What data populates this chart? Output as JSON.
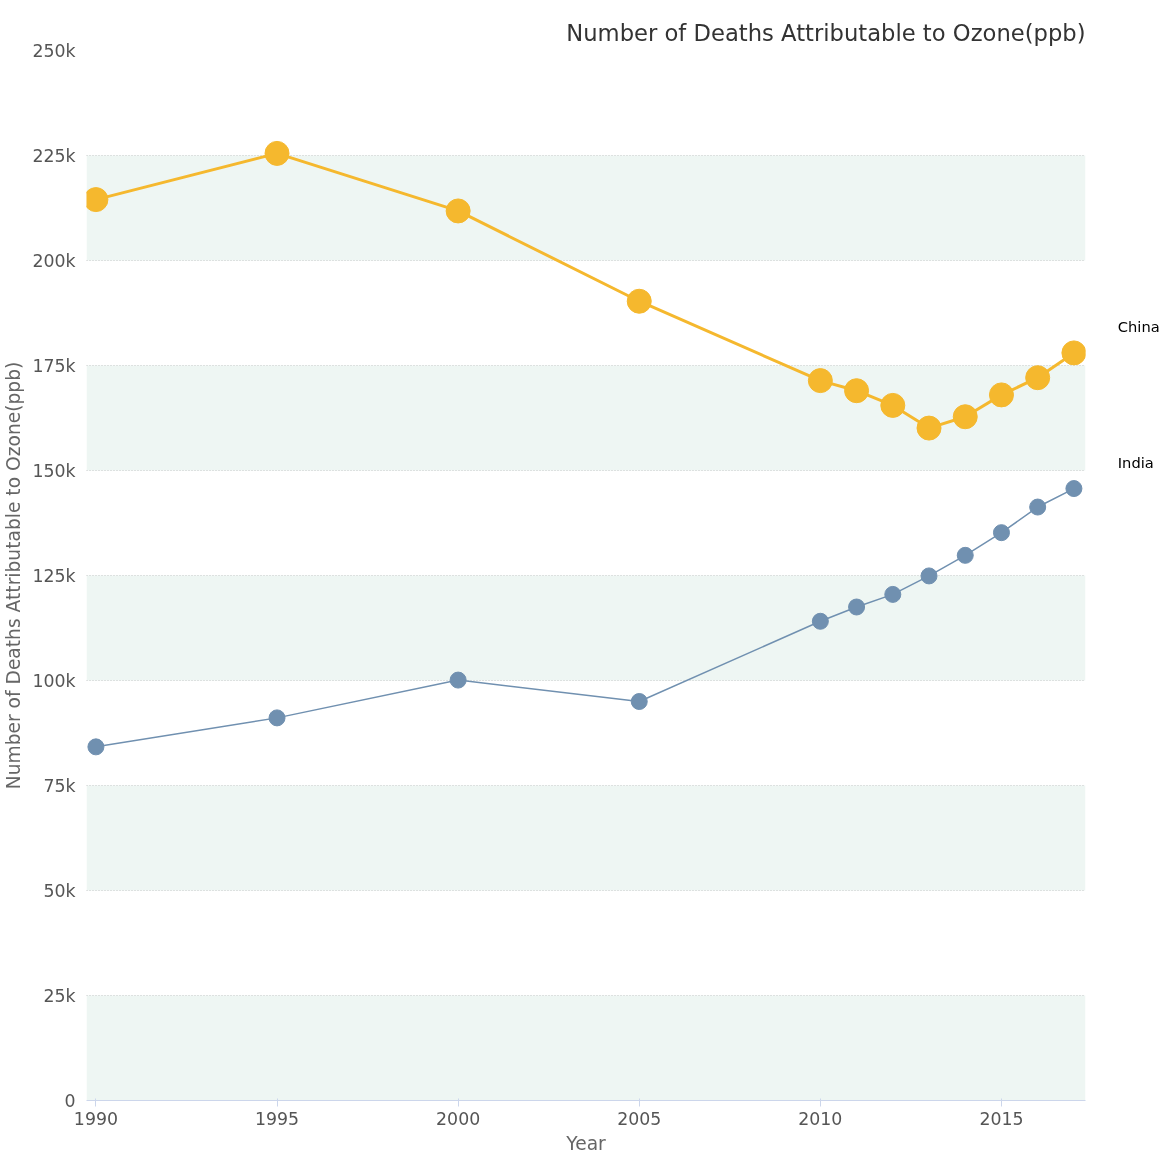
{
  "chart_data": {
    "type": "line",
    "title": "Number of Deaths Attributable to Ozone(ppb)",
    "xlabel": "Year",
    "ylabel": "Number of Deaths Attributable to Ozone(ppb)",
    "x": [
      1990,
      1995,
      2000,
      2005,
      2010,
      2011,
      2012,
      2013,
      2014,
      2015,
      2016,
      2017
    ],
    "series": [
      {
        "name": "China",
        "color": "#f5b82e",
        "values": [
          214500,
          225500,
          211800,
          190300,
          171400,
          169000,
          165500,
          160100,
          162800,
          168000,
          172100,
          178000
        ]
      },
      {
        "name": "India",
        "color": "#7090b0",
        "values": [
          84200,
          91100,
          100100,
          95000,
          114100,
          117500,
          120500,
          124900,
          129800,
          135200,
          141300,
          145700
        ]
      }
    ],
    "xlim": [
      1989.74,
      2017.32
    ],
    "xticks": [
      1990,
      1995,
      2000,
      2005,
      2010,
      2015
    ],
    "ylim": [
      0,
      250000
    ],
    "yticks": [
      0,
      {
        "value": 25000,
        "label": "25k"
      },
      {
        "value": 50000,
        "label": "50k"
      },
      {
        "value": 75000,
        "label": "75k"
      },
      {
        "value": 100000,
        "label": "100k"
      },
      {
        "value": 125000,
        "label": "125k"
      },
      {
        "value": 150000,
        "label": "150k"
      },
      {
        "value": 175000,
        "label": "175k"
      },
      {
        "value": 200000,
        "label": "200k"
      },
      {
        "value": 225000,
        "label": "225k"
      },
      {
        "value": 250000,
        "label": "250k"
      }
    ],
    "bands": [
      {
        "axis": "y",
        "from": 0,
        "to": 25000,
        "color": "#eef6f3"
      },
      {
        "axis": "y",
        "from": 50000,
        "to": 75000,
        "color": "#eef6f3"
      },
      {
        "axis": "y",
        "from": 100000,
        "to": 125000,
        "color": "#eef6f3"
      },
      {
        "axis": "y",
        "from": 150000,
        "to": 175000,
        "color": "#eef6f3"
      },
      {
        "axis": "y",
        "from": 200000,
        "to": 225000,
        "color": "#eef6f3"
      }
    ],
    "grid": "y",
    "legend": false,
    "marker": "circle"
  }
}
